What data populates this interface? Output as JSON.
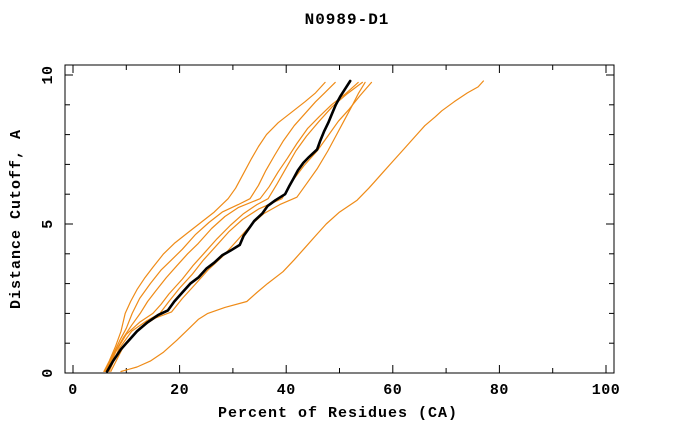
{
  "figure": {
    "background": "#ffffff",
    "frame_color": "#000000"
  },
  "chart_data": {
    "type": "line",
    "title": "N0989-D1",
    "xlabel": "Percent of Residues (CA)",
    "ylabel": "Distance Cutoff, A",
    "xlim": [
      0,
      100
    ],
    "ylim": [
      0,
      10
    ],
    "grid": false,
    "legend": "none",
    "x_major_ticks": [
      0,
      20,
      40,
      60,
      80,
      100
    ],
    "x_minor_ticks": [
      10,
      30,
      50,
      70,
      90
    ],
    "y_major_ticks": [
      0,
      5,
      10
    ],
    "y_minor_ticks": [
      1,
      2,
      3,
      4,
      6,
      7,
      8,
      9
    ],
    "colors": {
      "model_lines": "#ef8b17",
      "reference_line": "#000000"
    },
    "series": [
      {
        "name": "orange-line-1",
        "color": "#ef8b17",
        "width": 1.2,
        "points": [
          [
            5.8,
            0.05
          ],
          [
            6.8,
            0.4
          ],
          [
            8,
            0.9
          ],
          [
            9,
            1.4
          ],
          [
            9.8,
            2.0
          ],
          [
            10.8,
            2.4
          ],
          [
            12,
            2.8
          ],
          [
            13.5,
            3.2
          ],
          [
            15,
            3.55
          ],
          [
            17,
            4.0
          ],
          [
            19,
            4.35
          ],
          [
            21.5,
            4.7
          ],
          [
            24,
            5.05
          ],
          [
            26.5,
            5.4
          ],
          [
            29.1,
            5.85
          ],
          [
            30.5,
            6.2
          ],
          [
            32,
            6.7
          ],
          [
            33.5,
            7.2
          ],
          [
            34.8,
            7.6
          ],
          [
            36.3,
            8.0
          ],
          [
            38.5,
            8.4
          ],
          [
            41,
            8.75
          ],
          [
            43.5,
            9.1
          ],
          [
            45.5,
            9.4
          ],
          [
            47.3,
            9.75
          ]
        ]
      },
      {
        "name": "orange-line-2",
        "color": "#ef8b17",
        "width": 1.2,
        "points": [
          [
            6.0,
            0.05
          ],
          [
            7.2,
            0.5
          ],
          [
            8.8,
            1.1
          ],
          [
            10,
            1.5
          ],
          [
            11.1,
            2.0
          ],
          [
            12.5,
            2.5
          ],
          [
            14.5,
            3.0
          ],
          [
            16.5,
            3.45
          ],
          [
            18.5,
            3.8
          ],
          [
            20.5,
            4.15
          ],
          [
            23,
            4.65
          ],
          [
            25.5,
            5.05
          ],
          [
            28,
            5.4
          ],
          [
            31,
            5.65
          ],
          [
            33.2,
            5.85
          ],
          [
            34.8,
            6.3
          ],
          [
            36.2,
            6.8
          ],
          [
            37.8,
            7.3
          ],
          [
            39.5,
            7.8
          ],
          [
            41.5,
            8.3
          ],
          [
            43.5,
            8.7
          ],
          [
            45.5,
            9.1
          ],
          [
            47.2,
            9.4
          ],
          [
            49.2,
            9.75
          ]
        ]
      },
      {
        "name": "orange-line-3",
        "color": "#ef8b17",
        "width": 1.2,
        "points": [
          [
            6.2,
            0.05
          ],
          [
            7.6,
            0.6
          ],
          [
            9.5,
            1.2
          ],
          [
            11,
            1.6
          ],
          [
            12.6,
            2.0
          ],
          [
            14,
            2.4
          ],
          [
            15.5,
            2.75
          ],
          [
            17.5,
            3.2
          ],
          [
            19.5,
            3.6
          ],
          [
            21.5,
            4.0
          ],
          [
            23.5,
            4.35
          ],
          [
            26,
            4.85
          ],
          [
            28.5,
            5.25
          ],
          [
            31,
            5.55
          ],
          [
            35.1,
            5.85
          ],
          [
            36.8,
            6.25
          ],
          [
            38.5,
            6.75
          ],
          [
            40.2,
            7.2
          ],
          [
            42,
            7.7
          ],
          [
            44,
            8.2
          ],
          [
            46.2,
            8.6
          ],
          [
            48.5,
            9.0
          ],
          [
            51,
            9.35
          ],
          [
            53.5,
            9.75
          ]
        ]
      },
      {
        "name": "orange-line-4",
        "color": "#ef8b17",
        "width": 1.2,
        "points": [
          [
            6.5,
            0.05
          ],
          [
            8,
            0.7
          ],
          [
            10,
            1.3
          ],
          [
            12.5,
            1.7
          ],
          [
            15,
            2.0
          ],
          [
            16.5,
            2.3
          ],
          [
            18,
            2.65
          ],
          [
            20.5,
            3.15
          ],
          [
            22.5,
            3.6
          ],
          [
            24.5,
            4.0
          ],
          [
            27,
            4.5
          ],
          [
            29.5,
            4.95
          ],
          [
            32,
            5.35
          ],
          [
            34.5,
            5.65
          ],
          [
            36.6,
            5.85
          ],
          [
            38.3,
            6.35
          ],
          [
            40.2,
            6.95
          ],
          [
            41.8,
            7.45
          ],
          [
            43.8,
            7.95
          ],
          [
            46.2,
            8.45
          ],
          [
            48.7,
            8.95
          ],
          [
            51.3,
            9.35
          ],
          [
            54.3,
            9.75
          ]
        ]
      },
      {
        "name": "orange-line-5",
        "color": "#ef8b17",
        "width": 1.2,
        "points": [
          [
            6.8,
            0.05
          ],
          [
            8.6,
            0.8
          ],
          [
            11,
            1.4
          ],
          [
            13.8,
            1.75
          ],
          [
            16.3,
            2.0
          ],
          [
            18,
            2.4
          ],
          [
            20,
            2.85
          ],
          [
            22.3,
            3.3
          ],
          [
            24.5,
            3.8
          ],
          [
            26.8,
            4.25
          ],
          [
            29.3,
            4.75
          ],
          [
            31.8,
            5.15
          ],
          [
            34.8,
            5.5
          ],
          [
            39.2,
            5.85
          ],
          [
            41.2,
            6.45
          ],
          [
            43.3,
            6.95
          ],
          [
            45.8,
            7.45
          ],
          [
            47.8,
            7.95
          ],
          [
            49.8,
            8.45
          ],
          [
            51.8,
            8.85
          ],
          [
            53.8,
            9.3
          ],
          [
            56,
            9.75
          ]
        ]
      },
      {
        "name": "orange-line-6",
        "color": "#ef8b17",
        "width": 1.2,
        "points": [
          [
            7.1,
            0.05
          ],
          [
            9.5,
            0.9
          ],
          [
            12.5,
            1.5
          ],
          [
            15.5,
            1.85
          ],
          [
            18.5,
            2.05
          ],
          [
            20.5,
            2.5
          ],
          [
            22.8,
            2.95
          ],
          [
            25.3,
            3.45
          ],
          [
            28.3,
            3.95
          ],
          [
            30.8,
            4.45
          ],
          [
            33.3,
            4.95
          ],
          [
            35.8,
            5.35
          ],
          [
            38.8,
            5.65
          ],
          [
            42,
            5.9
          ],
          [
            43.8,
            6.35
          ],
          [
            45.8,
            6.85
          ],
          [
            47.8,
            7.45
          ],
          [
            49.3,
            7.95
          ],
          [
            50.8,
            8.45
          ],
          [
            52.3,
            8.95
          ],
          [
            53.6,
            9.4
          ],
          [
            54.8,
            9.75
          ]
        ]
      },
      {
        "name": "orange-line-7-outlier",
        "color": "#ef8b17",
        "width": 1.2,
        "points": [
          [
            9,
            0.05
          ],
          [
            12,
            0.2
          ],
          [
            14.5,
            0.4
          ],
          [
            17,
            0.7
          ],
          [
            19.5,
            1.1
          ],
          [
            21.8,
            1.5
          ],
          [
            23.5,
            1.8
          ],
          [
            25.3,
            2.0
          ],
          [
            28.5,
            2.2
          ],
          [
            32.6,
            2.4
          ],
          [
            34.5,
            2.7
          ],
          [
            36.5,
            3.0
          ],
          [
            39.4,
            3.4
          ],
          [
            41.5,
            3.8
          ],
          [
            43.5,
            4.2
          ],
          [
            45.5,
            4.6
          ],
          [
            47.5,
            5.0
          ],
          [
            50,
            5.4
          ],
          [
            53.3,
            5.8
          ],
          [
            55.5,
            6.2
          ],
          [
            56.5,
            6.4
          ],
          [
            58,
            6.7
          ],
          [
            60,
            7.1
          ],
          [
            62,
            7.5
          ],
          [
            64,
            7.9
          ],
          [
            66,
            8.3
          ],
          [
            68,
            8.6
          ],
          [
            69.2,
            8.8
          ],
          [
            71.5,
            9.1
          ],
          [
            74,
            9.4
          ],
          [
            76,
            9.6
          ],
          [
            77,
            9.8
          ]
        ]
      },
      {
        "name": "black-reference-line",
        "color": "#000000",
        "width": 2.6,
        "points": [
          [
            6.4,
            0.05
          ],
          [
            7.5,
            0.4
          ],
          [
            9,
            0.8
          ],
          [
            10.5,
            1.1
          ],
          [
            12,
            1.4
          ],
          [
            14,
            1.7
          ],
          [
            16,
            1.95
          ],
          [
            17.8,
            2.1
          ],
          [
            19,
            2.4
          ],
          [
            20.5,
            2.7
          ],
          [
            22,
            3.0
          ],
          [
            23.5,
            3.2
          ],
          [
            25,
            3.5
          ],
          [
            26.5,
            3.7
          ],
          [
            28,
            3.95
          ],
          [
            29.5,
            4.1
          ],
          [
            31.3,
            4.3
          ],
          [
            32,
            4.6
          ],
          [
            33,
            4.85
          ],
          [
            34,
            5.1
          ],
          [
            35.5,
            5.35
          ],
          [
            36.5,
            5.6
          ],
          [
            38,
            5.8
          ],
          [
            39.8,
            6.0
          ],
          [
            40.5,
            6.25
          ],
          [
            41.3,
            6.5
          ],
          [
            42.2,
            6.8
          ],
          [
            43.2,
            7.05
          ],
          [
            44.3,
            7.25
          ],
          [
            45.8,
            7.5
          ],
          [
            46.4,
            7.8
          ],
          [
            47.1,
            8.1
          ],
          [
            47.9,
            8.4
          ],
          [
            48.6,
            8.7
          ],
          [
            49.3,
            9.0
          ],
          [
            50.2,
            9.3
          ],
          [
            51.1,
            9.55
          ],
          [
            52,
            9.8
          ]
        ]
      }
    ]
  }
}
